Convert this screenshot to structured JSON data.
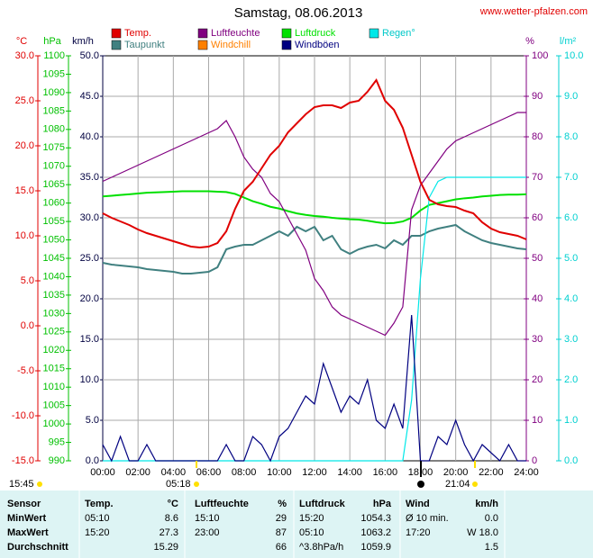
{
  "chart_data": {
    "type": "line",
    "title": "Samstag, 08.06.2013",
    "source": "www.wetter-pfalzen.com",
    "grid": true,
    "x": [
      0,
      0.5,
      1,
      1.5,
      2,
      2.5,
      3,
      3.5,
      4,
      4.5,
      5,
      5.5,
      6,
      6.5,
      7,
      7.5,
      8,
      8.5,
      9,
      9.5,
      10,
      10.5,
      11,
      11.5,
      12,
      12.5,
      13,
      13.5,
      14,
      14.5,
      15,
      15.5,
      16,
      16.5,
      17,
      17.5,
      18,
      18.5,
      19,
      19.5,
      20,
      20.5,
      21,
      21.5,
      22,
      22.5,
      23,
      23.5,
      24
    ],
    "xlim": [
      0,
      24
    ],
    "xticks": [
      {
        "value": 0,
        "label": "00:00"
      },
      {
        "value": 2,
        "label": "02:00"
      },
      {
        "value": 4,
        "label": "04:00"
      },
      {
        "value": 6,
        "label": "06:00"
      },
      {
        "value": 8,
        "label": "08:00"
      },
      {
        "value": 10,
        "label": "10:00"
      },
      {
        "value": 12,
        "label": "12:00"
      },
      {
        "value": 14,
        "label": "14:00"
      },
      {
        "value": 16,
        "label": "16:00"
      },
      {
        "value": 18,
        "label": "18:00"
      },
      {
        "value": 20,
        "label": "20:00"
      },
      {
        "value": 22,
        "label": "22:00"
      },
      {
        "value": 24,
        "label": "24:00"
      }
    ],
    "axes": [
      {
        "unit": "°C",
        "color": "#e00000",
        "lim": [
          -15,
          30
        ],
        "ticks": [
          {
            "value": 30,
            "label": "30.0"
          },
          {
            "value": 25,
            "label": "25.0"
          },
          {
            "value": 20,
            "label": "20.0"
          },
          {
            "value": 15,
            "label": "15.0"
          },
          {
            "value": 10,
            "label": "10.0"
          },
          {
            "value": 5,
            "label": "5.0"
          },
          {
            "value": 0,
            "label": "0.0"
          },
          {
            "value": -5,
            "label": "-5.0"
          },
          {
            "value": -10,
            "label": "-10.0"
          },
          {
            "value": -15,
            "label": "-15.0"
          }
        ]
      },
      {
        "unit": "hPa",
        "color": "#00c000",
        "lim": [
          990,
          1100
        ],
        "ticks": [
          1100,
          1095,
          1090,
          1085,
          1080,
          1075,
          1070,
          1065,
          1060,
          1055,
          1050,
          1045,
          1040,
          1035,
          1030,
          1025,
          1020,
          1015,
          1010,
          1005,
          1000,
          995,
          990
        ]
      },
      {
        "unit": "km/h",
        "color": "#000040",
        "lim": [
          0,
          50
        ],
        "ticks": [
          {
            "value": 50,
            "label": "50.0"
          },
          {
            "value": 45,
            "label": "45.0"
          },
          {
            "value": 40,
            "label": "40.0"
          },
          {
            "value": 35,
            "label": "35.0"
          },
          {
            "value": 30,
            "label": "30.0"
          },
          {
            "value": 25,
            "label": "25.0"
          },
          {
            "value": 20,
            "label": "20.0"
          },
          {
            "value": 15,
            "label": "15.0"
          },
          {
            "value": 10,
            "label": "10.0"
          },
          {
            "value": 5,
            "label": "5.0"
          },
          {
            "value": 0,
            "label": "0.0"
          }
        ]
      },
      {
        "unit": "%",
        "color": "#800080",
        "lim": [
          0,
          100
        ],
        "ticks": [
          100,
          90,
          80,
          70,
          60,
          50,
          40,
          30,
          20,
          10,
          0
        ]
      },
      {
        "unit": "l/m²",
        "color": "#00d0d0",
        "lim": [
          0,
          10
        ],
        "ticks": [
          {
            "value": 10,
            "label": "10.0"
          },
          {
            "value": 9,
            "label": "9.0"
          },
          {
            "value": 8,
            "label": "8.0"
          },
          {
            "value": 7,
            "label": "7.0"
          },
          {
            "value": 6,
            "label": "6.0"
          },
          {
            "value": 5,
            "label": "5.0"
          },
          {
            "value": 4,
            "label": "4.0"
          },
          {
            "value": 3,
            "label": "3.0"
          },
          {
            "value": 2,
            "label": "2.0"
          },
          {
            "value": 1,
            "label": "1.0"
          },
          {
            "value": 0,
            "label": "0.0"
          }
        ]
      }
    ],
    "series": [
      {
        "name": "Temp.",
        "color": "#e00000",
        "axis": 0,
        "values": [
          12.5,
          12.0,
          11.6,
          11.2,
          10.7,
          10.3,
          10.0,
          9.7,
          9.4,
          9.1,
          8.8,
          8.7,
          8.8,
          9.2,
          10.5,
          13.0,
          15.0,
          16.0,
          17.5,
          19.0,
          20.0,
          21.5,
          22.5,
          23.5,
          24.3,
          24.5,
          24.5,
          24.2,
          24.8,
          25.0,
          26.0,
          27.3,
          25.0,
          24.0,
          22.0,
          19.0,
          16.0,
          14.0,
          13.5,
          13.3,
          13.2,
          12.8,
          12.5,
          11.5,
          10.8,
          10.4,
          10.2,
          10.0,
          9.6
        ]
      },
      {
        "name": "Luftfeuchte",
        "color": "#800080",
        "axis": 3,
        "values": [
          69,
          70,
          71,
          72,
          73,
          74,
          75,
          76,
          77,
          78,
          79,
          80,
          81,
          82,
          84,
          80,
          75,
          72,
          70,
          66,
          64,
          60,
          56,
          52,
          45,
          42,
          38,
          36,
          35,
          34,
          33,
          32,
          31,
          34,
          38,
          62,
          68,
          71,
          74,
          77,
          79,
          80,
          81,
          82,
          83,
          84,
          85,
          86,
          86
        ]
      },
      {
        "name": "Luftdruck",
        "color": "#00e000",
        "axis": 1,
        "values": [
          1061.8,
          1062.0,
          1062.2,
          1062.4,
          1062.6,
          1062.8,
          1062.9,
          1063.0,
          1063.1,
          1063.2,
          1063.2,
          1063.2,
          1063.2,
          1063.1,
          1063.0,
          1062.5,
          1061.5,
          1060.5,
          1059.8,
          1059.0,
          1058.5,
          1057.8,
          1057.2,
          1056.8,
          1056.5,
          1056.3,
          1056.0,
          1055.8,
          1055.6,
          1055.5,
          1055.2,
          1054.8,
          1054.5,
          1054.6,
          1055.0,
          1056.0,
          1058.0,
          1059.5,
          1060.0,
          1060.5,
          1061.0,
          1061.3,
          1061.5,
          1061.8,
          1062.0,
          1062.2,
          1062.3,
          1062.3,
          1062.4
        ]
      },
      {
        "name": "Regen°",
        "color": "#00e8e8",
        "axis": 4,
        "values": [
          0,
          0,
          0,
          0,
          0,
          0,
          0,
          0,
          0,
          0,
          0,
          0,
          0,
          0,
          0,
          0,
          0,
          0,
          0,
          0,
          0,
          0,
          0,
          0,
          0,
          0,
          0,
          0,
          0,
          0,
          0,
          0,
          0,
          0,
          0,
          1.5,
          4.5,
          6.5,
          6.9,
          7.0,
          7.0,
          7.0,
          7.0,
          7.0,
          7.0,
          7.0,
          7.0,
          7.0,
          7.0
        ]
      },
      {
        "name": "Taupunkt",
        "color": "#408080",
        "axis": 0,
        "values": [
          7.0,
          6.8,
          6.7,
          6.6,
          6.5,
          6.3,
          6.2,
          6.1,
          6.0,
          5.8,
          5.8,
          5.9,
          6.0,
          6.5,
          8.5,
          8.8,
          9.0,
          9.0,
          9.5,
          10.0,
          10.5,
          10.0,
          11.0,
          10.5,
          11.0,
          9.5,
          10.0,
          8.5,
          8.0,
          8.5,
          8.8,
          9.0,
          8.6,
          9.5,
          9.0,
          10.0,
          10.0,
          10.5,
          10.8,
          11.0,
          11.2,
          10.5,
          10.0,
          9.5,
          9.2,
          9.0,
          8.8,
          8.6,
          8.5
        ]
      },
      {
        "name": "Windchill",
        "color": "#ff8000",
        "axis": 0,
        "values": [
          12.5,
          12.0,
          11.6,
          11.2,
          10.7,
          10.3,
          10.0,
          9.7,
          9.4,
          9.1,
          8.8,
          8.7,
          8.8,
          9.2,
          10.5,
          13.0,
          15.0,
          16.0,
          17.5,
          19.0,
          20.0,
          21.5,
          22.5,
          23.5,
          24.3,
          24.5,
          24.5,
          24.2,
          24.8,
          25.0,
          26.0,
          27.3,
          25.0,
          24.0,
          22.0,
          19.0,
          16.0,
          14.0,
          13.5,
          13.3,
          13.2,
          12.8,
          12.5,
          11.5,
          10.8,
          10.4,
          10.2,
          10.0,
          9.6
        ]
      },
      {
        "name": "Windböen",
        "color": "#000080",
        "axis": 2,
        "values": [
          2,
          0,
          3,
          0,
          0,
          2,
          0,
          0,
          0,
          0,
          0,
          0,
          0,
          0,
          2,
          0,
          0,
          3,
          2,
          0,
          3,
          4,
          6,
          8,
          7,
          12,
          9,
          6,
          8,
          7,
          10,
          5,
          4,
          7,
          4,
          18,
          0,
          0,
          3,
          2,
          5,
          2,
          0,
          2,
          1,
          0,
          2,
          0,
          0
        ]
      }
    ],
    "moonrise": "15:45",
    "sunrise": "05:18",
    "sunset": "21:04"
  },
  "table": {
    "header": [
      "Sensor",
      "Temp.",
      "°C",
      "Luftfeuchte",
      "%",
      "Luftdruck",
      "hPa",
      "Wind",
      "km/h"
    ],
    "rows": [
      [
        "MinWert",
        "05:10",
        "8.6",
        "15:10",
        "29",
        "15:20",
        "1054.3",
        "Ø 10 min.",
        "0.0"
      ],
      [
        "MaxWert",
        "15:20",
        "27.3",
        "23:00",
        "87",
        "05:10",
        "1063.2",
        "17:20",
        "W 18.0"
      ],
      [
        "Durchschnitt",
        null,
        "15.29",
        null,
        "66",
        "^3.8hPa/h",
        "1059.9",
        null,
        "1.5"
      ]
    ]
  }
}
